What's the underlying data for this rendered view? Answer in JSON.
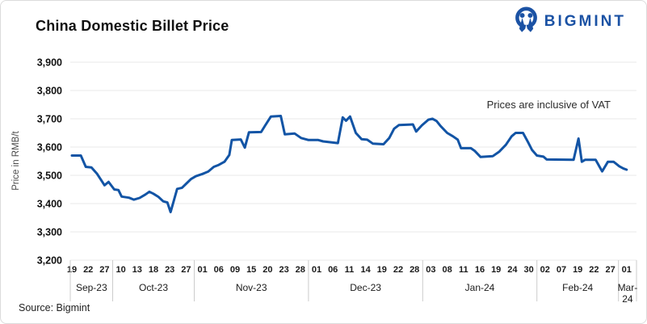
{
  "header": {
    "title": "China Domestic Billet Price",
    "logo_text": "BIGMINT"
  },
  "annotation": "Prices are inclusive of VAT",
  "source": "Source: Bigmint",
  "colors": {
    "line": "#1254A5",
    "logo_blue": "#1B52A4",
    "grid": "#E8E8E8",
    "separator": "#CCCCCC",
    "title_text": "#111111",
    "axis_text": "#1A1A1A",
    "ylabel_text": "#4A4A4A"
  },
  "chart_data": {
    "type": "line",
    "title": "China Domestic Billet Price",
    "ylabel": "Price in RMB/t",
    "ylim": [
      3200,
      3900
    ],
    "y_ticks": [
      3900,
      3800,
      3700,
      3600,
      3500,
      3400,
      3300,
      3200
    ],
    "grid": "horizontal-only",
    "legend": "none",
    "months": [
      {
        "label": "Sep-23",
        "ticks": [
          "19",
          "22",
          "27"
        ]
      },
      {
        "label": "Oct-23",
        "ticks": [
          "10",
          "13",
          "18",
          "23",
          "27"
        ]
      },
      {
        "label": "Nov-23",
        "ticks": [
          "01",
          "06",
          "09",
          "15",
          "20",
          "23",
          "28"
        ]
      },
      {
        "label": "Dec-23",
        "ticks": [
          "01",
          "06",
          "11",
          "14",
          "19",
          "22",
          "28"
        ]
      },
      {
        "label": "Jan-24",
        "ticks": [
          "03",
          "08",
          "11",
          "16",
          "19",
          "24",
          "30"
        ]
      },
      {
        "label": "Feb-24",
        "ticks": [
          "02",
          "07",
          "19",
          "22",
          "27"
        ]
      },
      {
        "label": "Mar-24",
        "ticks": [
          "01"
        ]
      }
    ],
    "values_at_labeled_ticks": [
      3570,
      3528,
      3465,
      3425,
      3420,
      3435,
      3370,
      3470,
      3505,
      3537,
      3626,
      3653,
      3705,
      3645,
      3632,
      3625,
      3616,
      3708,
      3627,
      3610,
      3678,
      3678,
      3700,
      3650,
      3596,
      3565,
      3582,
      3645,
      3618,
      3557,
      3555,
      3630,
      3555,
      3548,
      3520
    ],
    "series": [
      {
        "name": "China domestic billet price (RMB/t, incl. VAT)",
        "x_unit": "tick-index (0 = Sep 19 '23, 34 = Mar 01 '24)",
        "points": [
          [
            0,
            3570
          ],
          [
            0.55,
            3570
          ],
          [
            0.85,
            3530
          ],
          [
            1.2,
            3528
          ],
          [
            1.55,
            3505
          ],
          [
            2,
            3465
          ],
          [
            2.25,
            3477
          ],
          [
            2.6,
            3450
          ],
          [
            2.85,
            3448
          ],
          [
            3.05,
            3425
          ],
          [
            3.5,
            3421
          ],
          [
            3.8,
            3414
          ],
          [
            4.15,
            3420
          ],
          [
            4.5,
            3432
          ],
          [
            4.75,
            3442
          ],
          [
            5,
            3435
          ],
          [
            5.3,
            3424
          ],
          [
            5.6,
            3408
          ],
          [
            5.85,
            3404
          ],
          [
            6.05,
            3370
          ],
          [
            6.45,
            3452
          ],
          [
            6.75,
            3456
          ],
          [
            7,
            3470
          ],
          [
            7.3,
            3487
          ],
          [
            7.6,
            3497
          ],
          [
            8,
            3505
          ],
          [
            8.35,
            3513
          ],
          [
            8.7,
            3530
          ],
          [
            9,
            3537
          ],
          [
            9.35,
            3548
          ],
          [
            9.65,
            3572
          ],
          [
            9.8,
            3625
          ],
          [
            10.35,
            3627
          ],
          [
            10.6,
            3598
          ],
          [
            10.85,
            3652
          ],
          [
            11.6,
            3653
          ],
          [
            11.85,
            3677
          ],
          [
            12.2,
            3708
          ],
          [
            12.8,
            3710
          ],
          [
            13.05,
            3645
          ],
          [
            13.65,
            3648
          ],
          [
            14.05,
            3632
          ],
          [
            14.5,
            3625
          ],
          [
            15.1,
            3625
          ],
          [
            15.4,
            3620
          ],
          [
            16.3,
            3614
          ],
          [
            16.6,
            3705
          ],
          [
            16.8,
            3693
          ],
          [
            17.05,
            3708
          ],
          [
            17.4,
            3650
          ],
          [
            17.75,
            3628
          ],
          [
            18.1,
            3626
          ],
          [
            18.45,
            3612
          ],
          [
            19.1,
            3610
          ],
          [
            19.45,
            3632
          ],
          [
            19.75,
            3665
          ],
          [
            20.05,
            3678
          ],
          [
            20.9,
            3680
          ],
          [
            21.1,
            3655
          ],
          [
            21.45,
            3677
          ],
          [
            21.85,
            3697
          ],
          [
            22.1,
            3700
          ],
          [
            22.35,
            3692
          ],
          [
            22.6,
            3674
          ],
          [
            23,
            3650
          ],
          [
            23.35,
            3638
          ],
          [
            23.65,
            3626
          ],
          [
            23.85,
            3596
          ],
          [
            24.45,
            3596
          ],
          [
            24.7,
            3586
          ],
          [
            25.05,
            3565
          ],
          [
            25.8,
            3568
          ],
          [
            26.2,
            3584
          ],
          [
            26.6,
            3608
          ],
          [
            26.95,
            3638
          ],
          [
            27.2,
            3650
          ],
          [
            27.65,
            3650
          ],
          [
            27.95,
            3618
          ],
          [
            28.2,
            3590
          ],
          [
            28.5,
            3570
          ],
          [
            28.9,
            3566
          ],
          [
            29.1,
            3556
          ],
          [
            30.75,
            3555
          ],
          [
            31.05,
            3630
          ],
          [
            31.25,
            3548
          ],
          [
            31.45,
            3555
          ],
          [
            32.1,
            3555
          ],
          [
            32.5,
            3514
          ],
          [
            32.85,
            3548
          ],
          [
            33.2,
            3548
          ],
          [
            33.55,
            3532
          ],
          [
            33.8,
            3524
          ],
          [
            34,
            3520
          ]
        ]
      }
    ]
  }
}
